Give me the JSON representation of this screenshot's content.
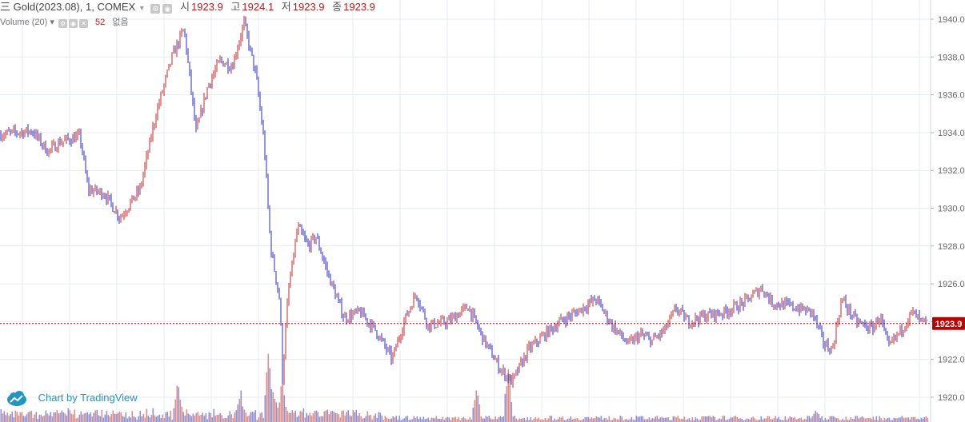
{
  "header": {
    "symbol_menu_glyph": "三",
    "symbol": "Gold(2023.08)",
    "interval": "1",
    "exchange": "COMEX",
    "dropdown_glyph": "▾",
    "open_label": "시",
    "open_value": "1923.9",
    "high_label": "고",
    "high_value": "1924.1",
    "low_label": "저",
    "low_value": "1923.9",
    "close_label": "종",
    "close_value": "1923.9"
  },
  "volume_legend": {
    "label": "Volume (20)",
    "value": "52",
    "na_text": "없음"
  },
  "branding": {
    "text": "Chart by TradingView"
  },
  "colors": {
    "up": "#c62828",
    "down": "#2828c8",
    "grid": "#e6ecf2",
    "last_price": "#c00000",
    "axis_text": "#666666"
  },
  "chart_data": {
    "type": "candlestick",
    "title": "",
    "ylabel": "",
    "xlabel": "",
    "ylim": [
      1919.4,
      1941.0
    ],
    "yticks": [
      "1920.0",
      "1922.0",
      "1924.0",
      "1926.0",
      "1928.0",
      "1930.0",
      "1932.0",
      "1934.0",
      "1936.0",
      "1938.0",
      "1940.0"
    ],
    "last_price": "1923.9",
    "grid": true,
    "price_path": [
      [
        0,
        1933.9
      ],
      [
        40,
        1934.1
      ],
      [
        60,
        1933.0
      ],
      [
        75,
        1933.5
      ],
      [
        100,
        1933.8
      ],
      [
        110,
        1931.0
      ],
      [
        130,
        1930.8
      ],
      [
        150,
        1929.5
      ],
      [
        175,
        1931.0
      ],
      [
        195,
        1935.0
      ],
      [
        215,
        1938.0
      ],
      [
        230,
        1939.5
      ],
      [
        245,
        1934.0
      ],
      [
        260,
        1936.5
      ],
      [
        275,
        1937.8
      ],
      [
        290,
        1937.5
      ],
      [
        305,
        1939.8
      ],
      [
        320,
        1937.0
      ],
      [
        330,
        1933.5
      ],
      [
        338,
        1928.0
      ],
      [
        350,
        1925.0
      ],
      [
        353,
        1921.0
      ],
      [
        360,
        1925.5
      ],
      [
        372,
        1929.0
      ],
      [
        385,
        1928.0
      ],
      [
        395,
        1928.5
      ],
      [
        410,
        1926.5
      ],
      [
        430,
        1924.2
      ],
      [
        450,
        1924.5
      ],
      [
        470,
        1923.5
      ],
      [
        490,
        1922.0
      ],
      [
        505,
        1924.0
      ],
      [
        520,
        1925.5
      ],
      [
        535,
        1923.8
      ],
      [
        560,
        1924.0
      ],
      [
        585,
        1924.8
      ],
      [
        605,
        1923.0
      ],
      [
        625,
        1921.5
      ],
      [
        640,
        1920.8
      ],
      [
        660,
        1922.5
      ],
      [
        680,
        1923.3
      ],
      [
        700,
        1924.0
      ],
      [
        720,
        1924.5
      ],
      [
        745,
        1925.2
      ],
      [
        765,
        1923.8
      ],
      [
        785,
        1922.8
      ],
      [
        800,
        1923.3
      ],
      [
        815,
        1923.0
      ],
      [
        830,
        1923.5
      ],
      [
        845,
        1924.7
      ],
      [
        860,
        1924.0
      ],
      [
        880,
        1924.3
      ],
      [
        905,
        1924.5
      ],
      [
        930,
        1925.0
      ],
      [
        952,
        1925.8
      ],
      [
        965,
        1925.0
      ],
      [
        990,
        1924.8
      ],
      [
        1015,
        1924.5
      ],
      [
        1030,
        1922.8
      ],
      [
        1040,
        1922.5
      ],
      [
        1052,
        1925.2
      ],
      [
        1070,
        1924.0
      ],
      [
        1090,
        1923.6
      ],
      [
        1100,
        1924.3
      ],
      [
        1110,
        1922.6
      ],
      [
        1125,
        1923.5
      ],
      [
        1140,
        1924.5
      ],
      [
        1150,
        1924.0
      ],
      [
        1160,
        1923.9
      ]
    ],
    "volume": {
      "label": "Volume (20)",
      "latest": 52,
      "spikes": [
        [
          222,
          0.6
        ],
        [
          300,
          0.55
        ],
        [
          335,
          1.0
        ],
        [
          340,
          0.75
        ],
        [
          352,
          0.65
        ],
        [
          595,
          0.5
        ],
        [
          635,
          0.9
        ],
        [
          1020,
          0.2
        ],
        [
          1040,
          0.15
        ]
      ]
    }
  }
}
